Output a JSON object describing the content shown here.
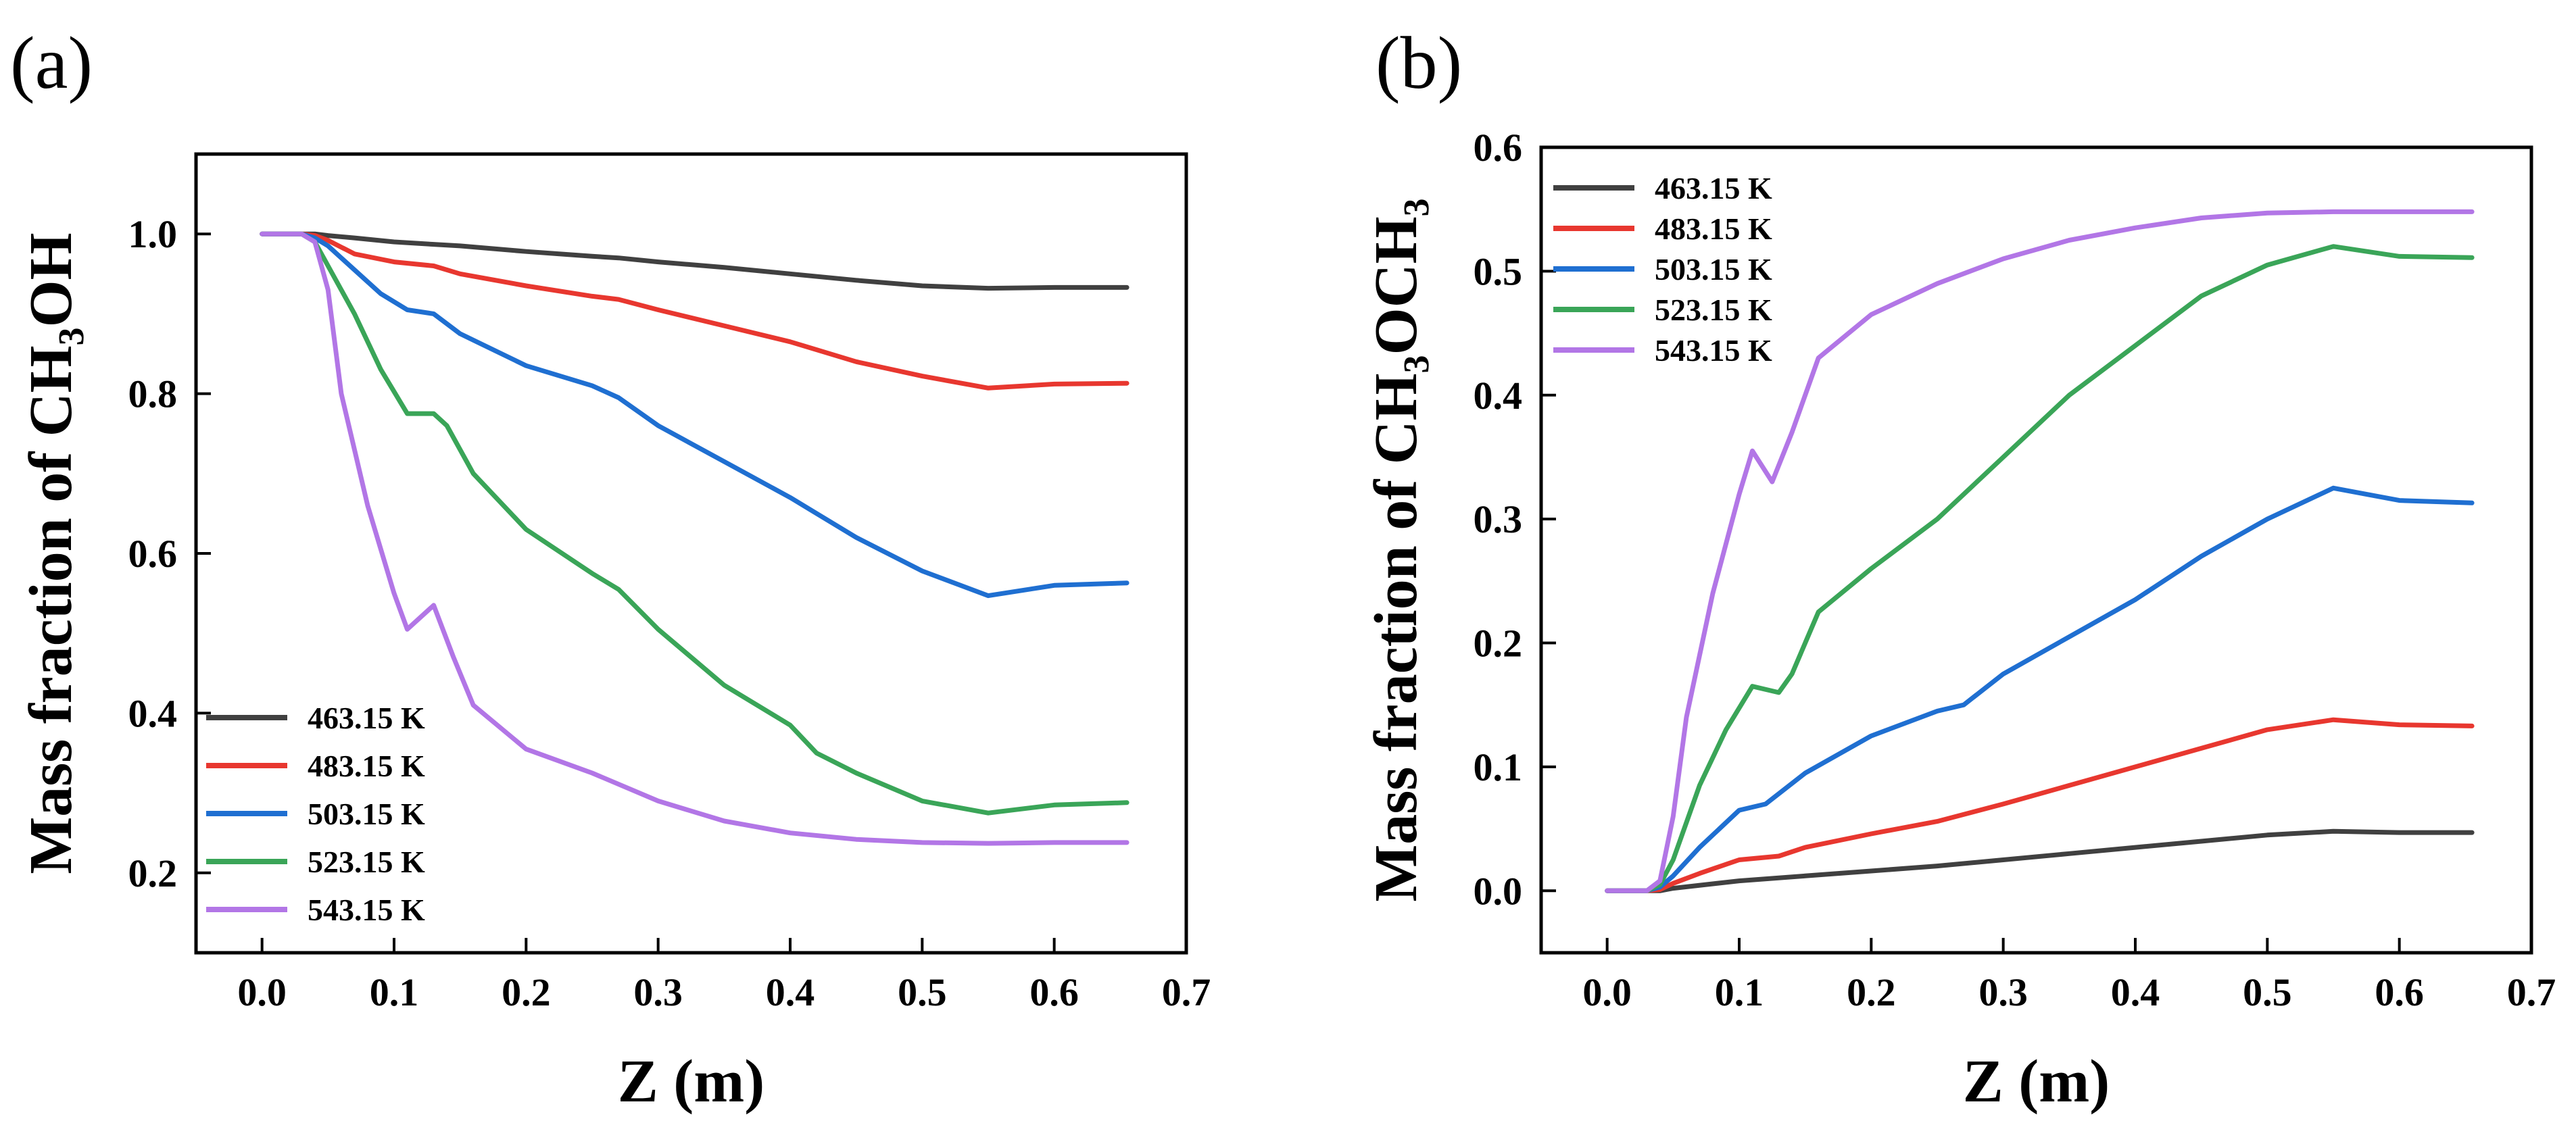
{
  "chart_data": [
    {
      "panel_label": "(a)",
      "type": "line",
      "title": "",
      "xlabel": "Z (m)",
      "ylabel": "Mass fraction of CH₃OH",
      "xlim": [
        -0.05,
        0.7
      ],
      "ylim": [
        0.1,
        1.1
      ],
      "grid": false,
      "xticks": [
        0.0,
        0.1,
        0.2,
        0.3,
        0.4,
        0.5,
        0.6,
        0.7
      ],
      "yticks": [
        0.2,
        0.4,
        0.6,
        0.8,
        1.0
      ],
      "xtick_labels": [
        "0.0",
        "0.1",
        "0.2",
        "0.3",
        "0.4",
        "0.5",
        "0.6",
        "0.7"
      ],
      "ytick_labels": [
        "0.2",
        "0.4",
        "0.6",
        "0.8",
        "1.0"
      ],
      "legend_position": "bottom-left",
      "series": [
        {
          "name": "463.15 K",
          "color": "#404040",
          "x": [
            0.0,
            0.03,
            0.04,
            0.05,
            0.07,
            0.1,
            0.13,
            0.15,
            0.2,
            0.25,
            0.27,
            0.3,
            0.35,
            0.4,
            0.45,
            0.5,
            0.55,
            0.6,
            0.655
          ],
          "y": [
            1.0,
            1.0,
            1.0,
            0.998,
            0.995,
            0.99,
            0.987,
            0.985,
            0.978,
            0.972,
            0.97,
            0.965,
            0.958,
            0.95,
            0.942,
            0.935,
            0.932,
            0.933,
            0.933
          ]
        },
        {
          "name": "483.15 K",
          "color": "#e8372f",
          "x": [
            0.0,
            0.03,
            0.04,
            0.05,
            0.07,
            0.1,
            0.13,
            0.15,
            0.2,
            0.25,
            0.27,
            0.3,
            0.35,
            0.4,
            0.45,
            0.5,
            0.55,
            0.6,
            0.655
          ],
          "y": [
            1.0,
            1.0,
            0.998,
            0.992,
            0.975,
            0.965,
            0.96,
            0.95,
            0.935,
            0.922,
            0.918,
            0.905,
            0.885,
            0.865,
            0.84,
            0.822,
            0.807,
            0.812,
            0.813
          ]
        },
        {
          "name": "503.15 K",
          "color": "#1f6fd1",
          "x": [
            0.0,
            0.03,
            0.04,
            0.05,
            0.07,
            0.09,
            0.11,
            0.13,
            0.15,
            0.2,
            0.25,
            0.27,
            0.3,
            0.35,
            0.4,
            0.45,
            0.5,
            0.55,
            0.6,
            0.655
          ],
          "y": [
            1.0,
            1.0,
            0.995,
            0.985,
            0.955,
            0.925,
            0.905,
            0.9,
            0.875,
            0.835,
            0.81,
            0.795,
            0.76,
            0.715,
            0.67,
            0.62,
            0.578,
            0.547,
            0.56,
            0.563
          ]
        },
        {
          "name": "523.15 K",
          "color": "#3aa558",
          "x": [
            0.0,
            0.03,
            0.04,
            0.05,
            0.07,
            0.09,
            0.11,
            0.13,
            0.14,
            0.16,
            0.2,
            0.25,
            0.27,
            0.3,
            0.35,
            0.4,
            0.42,
            0.45,
            0.5,
            0.55,
            0.6,
            0.655
          ],
          "y": [
            1.0,
            1.0,
            0.99,
            0.96,
            0.9,
            0.83,
            0.775,
            0.775,
            0.76,
            0.7,
            0.63,
            0.575,
            0.555,
            0.505,
            0.435,
            0.385,
            0.35,
            0.325,
            0.29,
            0.275,
            0.285,
            0.288
          ]
        },
        {
          "name": "543.15 K",
          "color": "#b276e6",
          "x": [
            0.0,
            0.03,
            0.04,
            0.05,
            0.06,
            0.08,
            0.1,
            0.11,
            0.13,
            0.145,
            0.16,
            0.2,
            0.25,
            0.3,
            0.35,
            0.4,
            0.45,
            0.5,
            0.55,
            0.6,
            0.655
          ],
          "y": [
            1.0,
            1.0,
            0.99,
            0.93,
            0.8,
            0.66,
            0.55,
            0.505,
            0.535,
            0.47,
            0.41,
            0.355,
            0.325,
            0.29,
            0.265,
            0.25,
            0.242,
            0.238,
            0.237,
            0.238,
            0.238
          ]
        }
      ]
    },
    {
      "panel_label": "(b)",
      "type": "line",
      "title": "",
      "xlabel": "Z (m)",
      "ylabel": "Mass fraction of CH₃OCH₃",
      "xlim": [
        -0.05,
        0.7
      ],
      "ylim": [
        -0.05,
        0.6
      ],
      "grid": false,
      "xticks": [
        0.0,
        0.1,
        0.2,
        0.3,
        0.4,
        0.5,
        0.6,
        0.7
      ],
      "yticks": [
        0.0,
        0.1,
        0.2,
        0.3,
        0.4,
        0.5,
        0.6
      ],
      "xtick_labels": [
        "0.0",
        "0.1",
        "0.2",
        "0.3",
        "0.4",
        "0.5",
        "0.6",
        "0.7"
      ],
      "ytick_labels": [
        "0.0",
        "0.1",
        "0.2",
        "0.3",
        "0.4",
        "0.5",
        "0.6"
      ],
      "legend_position": "top-left",
      "series": [
        {
          "name": "463.15 K",
          "color": "#404040",
          "x": [
            0.0,
            0.03,
            0.04,
            0.05,
            0.1,
            0.15,
            0.2,
            0.25,
            0.3,
            0.35,
            0.4,
            0.45,
            0.5,
            0.55,
            0.6,
            0.655
          ],
          "y": [
            0.0,
            0.0,
            0.0,
            0.002,
            0.008,
            0.012,
            0.016,
            0.02,
            0.025,
            0.03,
            0.035,
            0.04,
            0.045,
            0.048,
            0.047,
            0.047
          ]
        },
        {
          "name": "483.15 K",
          "color": "#e8372f",
          "x": [
            0.0,
            0.03,
            0.04,
            0.05,
            0.07,
            0.1,
            0.13,
            0.15,
            0.2,
            0.25,
            0.3,
            0.35,
            0.4,
            0.45,
            0.5,
            0.55,
            0.6,
            0.655
          ],
          "y": [
            0.0,
            0.0,
            0.001,
            0.006,
            0.014,
            0.025,
            0.028,
            0.035,
            0.046,
            0.056,
            0.07,
            0.085,
            0.1,
            0.115,
            0.13,
            0.138,
            0.134,
            0.133
          ]
        },
        {
          "name": "503.15 K",
          "color": "#1f6fd1",
          "x": [
            0.0,
            0.03,
            0.04,
            0.05,
            0.07,
            0.1,
            0.12,
            0.15,
            0.2,
            0.25,
            0.27,
            0.3,
            0.35,
            0.4,
            0.45,
            0.5,
            0.55,
            0.6,
            0.655
          ],
          "y": [
            0.0,
            0.0,
            0.003,
            0.012,
            0.035,
            0.065,
            0.07,
            0.095,
            0.125,
            0.145,
            0.15,
            0.175,
            0.205,
            0.235,
            0.27,
            0.3,
            0.325,
            0.315,
            0.313
          ]
        },
        {
          "name": "523.15 K",
          "color": "#3aa558",
          "x": [
            0.0,
            0.03,
            0.04,
            0.05,
            0.07,
            0.09,
            0.11,
            0.13,
            0.14,
            0.16,
            0.2,
            0.25,
            0.3,
            0.35,
            0.4,
            0.45,
            0.5,
            0.55,
            0.6,
            0.655
          ],
          "y": [
            0.0,
            0.0,
            0.005,
            0.025,
            0.085,
            0.13,
            0.165,
            0.16,
            0.175,
            0.225,
            0.26,
            0.3,
            0.35,
            0.4,
            0.44,
            0.48,
            0.505,
            0.52,
            0.512,
            0.511
          ]
        },
        {
          "name": "543.15 K",
          "color": "#b276e6",
          "x": [
            0.0,
            0.03,
            0.04,
            0.05,
            0.06,
            0.08,
            0.1,
            0.11,
            0.125,
            0.14,
            0.16,
            0.2,
            0.25,
            0.3,
            0.35,
            0.4,
            0.45,
            0.5,
            0.55,
            0.6,
            0.655
          ],
          "y": [
            0.0,
            0.0,
            0.008,
            0.06,
            0.14,
            0.24,
            0.32,
            0.355,
            0.33,
            0.37,
            0.43,
            0.465,
            0.49,
            0.51,
            0.525,
            0.535,
            0.543,
            0.547,
            0.548,
            0.548,
            0.548
          ]
        }
      ]
    }
  ]
}
